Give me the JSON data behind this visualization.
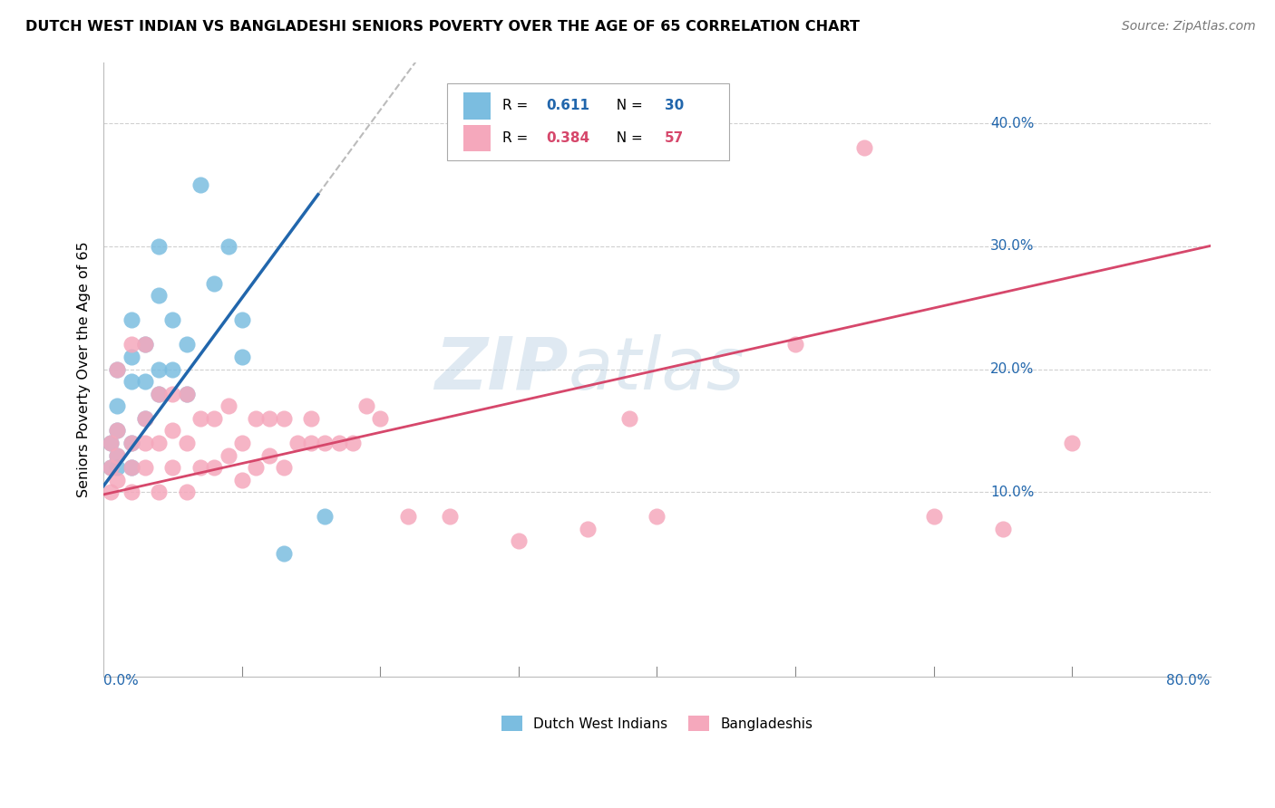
{
  "title": "DUTCH WEST INDIAN VS BANGLADESHI SENIORS POVERTY OVER THE AGE OF 65 CORRELATION CHART",
  "source": "Source: ZipAtlas.com",
  "ylabel": "Seniors Poverty Over the Age of 65",
  "ytick_labels": [
    "10.0%",
    "20.0%",
    "30.0%",
    "40.0%"
  ],
  "ytick_vals": [
    0.1,
    0.2,
    0.3,
    0.4
  ],
  "xrange": [
    0.0,
    0.8
  ],
  "yrange": [
    -0.05,
    0.45
  ],
  "blue_color": "#7bbde0",
  "pink_color": "#f5a8bc",
  "blue_line_color": "#2166ac",
  "pink_line_color": "#d6476b",
  "watermark_zip": "ZIP",
  "watermark_atlas": "atlas",
  "dutch_west_indian_x": [
    0.005,
    0.005,
    0.01,
    0.01,
    0.01,
    0.01,
    0.01,
    0.02,
    0.02,
    0.02,
    0.02,
    0.02,
    0.03,
    0.03,
    0.03,
    0.04,
    0.04,
    0.04,
    0.04,
    0.05,
    0.05,
    0.06,
    0.06,
    0.07,
    0.08,
    0.09,
    0.1,
    0.1,
    0.13,
    0.16
  ],
  "dutch_west_indian_y": [
    0.12,
    0.14,
    0.12,
    0.13,
    0.15,
    0.17,
    0.2,
    0.12,
    0.14,
    0.19,
    0.21,
    0.24,
    0.16,
    0.19,
    0.22,
    0.18,
    0.2,
    0.26,
    0.3,
    0.2,
    0.24,
    0.18,
    0.22,
    0.35,
    0.27,
    0.3,
    0.21,
    0.24,
    0.05,
    0.08
  ],
  "bangladeshi_x": [
    0.005,
    0.005,
    0.005,
    0.01,
    0.01,
    0.01,
    0.01,
    0.02,
    0.02,
    0.02,
    0.02,
    0.03,
    0.03,
    0.03,
    0.03,
    0.04,
    0.04,
    0.04,
    0.05,
    0.05,
    0.05,
    0.06,
    0.06,
    0.06,
    0.07,
    0.07,
    0.08,
    0.08,
    0.09,
    0.09,
    0.1,
    0.1,
    0.11,
    0.11,
    0.12,
    0.12,
    0.13,
    0.13,
    0.14,
    0.15,
    0.15,
    0.16,
    0.17,
    0.18,
    0.19,
    0.2,
    0.22,
    0.25,
    0.3,
    0.35,
    0.4,
    0.5,
    0.55,
    0.6,
    0.65,
    0.7,
    0.38
  ],
  "bangladeshi_y": [
    0.1,
    0.12,
    0.14,
    0.11,
    0.13,
    0.15,
    0.2,
    0.1,
    0.12,
    0.14,
    0.22,
    0.12,
    0.14,
    0.16,
    0.22,
    0.1,
    0.14,
    0.18,
    0.12,
    0.15,
    0.18,
    0.1,
    0.14,
    0.18,
    0.12,
    0.16,
    0.12,
    0.16,
    0.13,
    0.17,
    0.11,
    0.14,
    0.12,
    0.16,
    0.13,
    0.16,
    0.12,
    0.16,
    0.14,
    0.14,
    0.16,
    0.14,
    0.14,
    0.14,
    0.17,
    0.16,
    0.08,
    0.08,
    0.06,
    0.07,
    0.08,
    0.22,
    0.38,
    0.08,
    0.07,
    0.14,
    0.16
  ]
}
